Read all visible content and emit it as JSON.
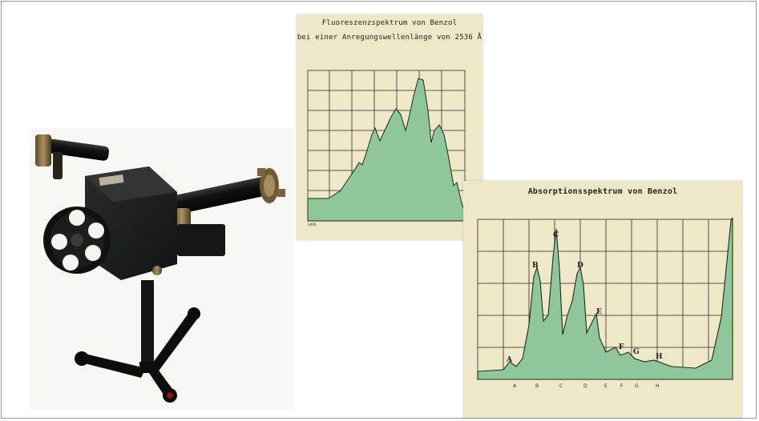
{
  "fluorescence_card": {
    "title_line1": "Fluoreszenzspektrum von Benzol",
    "title_line2": "bei einer Anregungswellenlänge von 2536 Å",
    "fill_color": "#8fc79b",
    "line_color": "#1e2a1e"
  },
  "absorption_card": {
    "title": "Absorptionsspektrum von Benzol",
    "peak_labels": [
      "A",
      "B",
      "C",
      "D",
      "E",
      "F",
      "G",
      "H"
    ],
    "bottom_labels": [
      "A",
      "B",
      "C",
      "D",
      "E",
      "F",
      "G",
      "H"
    ],
    "fill_color": "#8fc79b",
    "line_color": "#1e2a1e"
  },
  "photo": {
    "subject": "spectroscope-on-tripod-icon"
  }
}
